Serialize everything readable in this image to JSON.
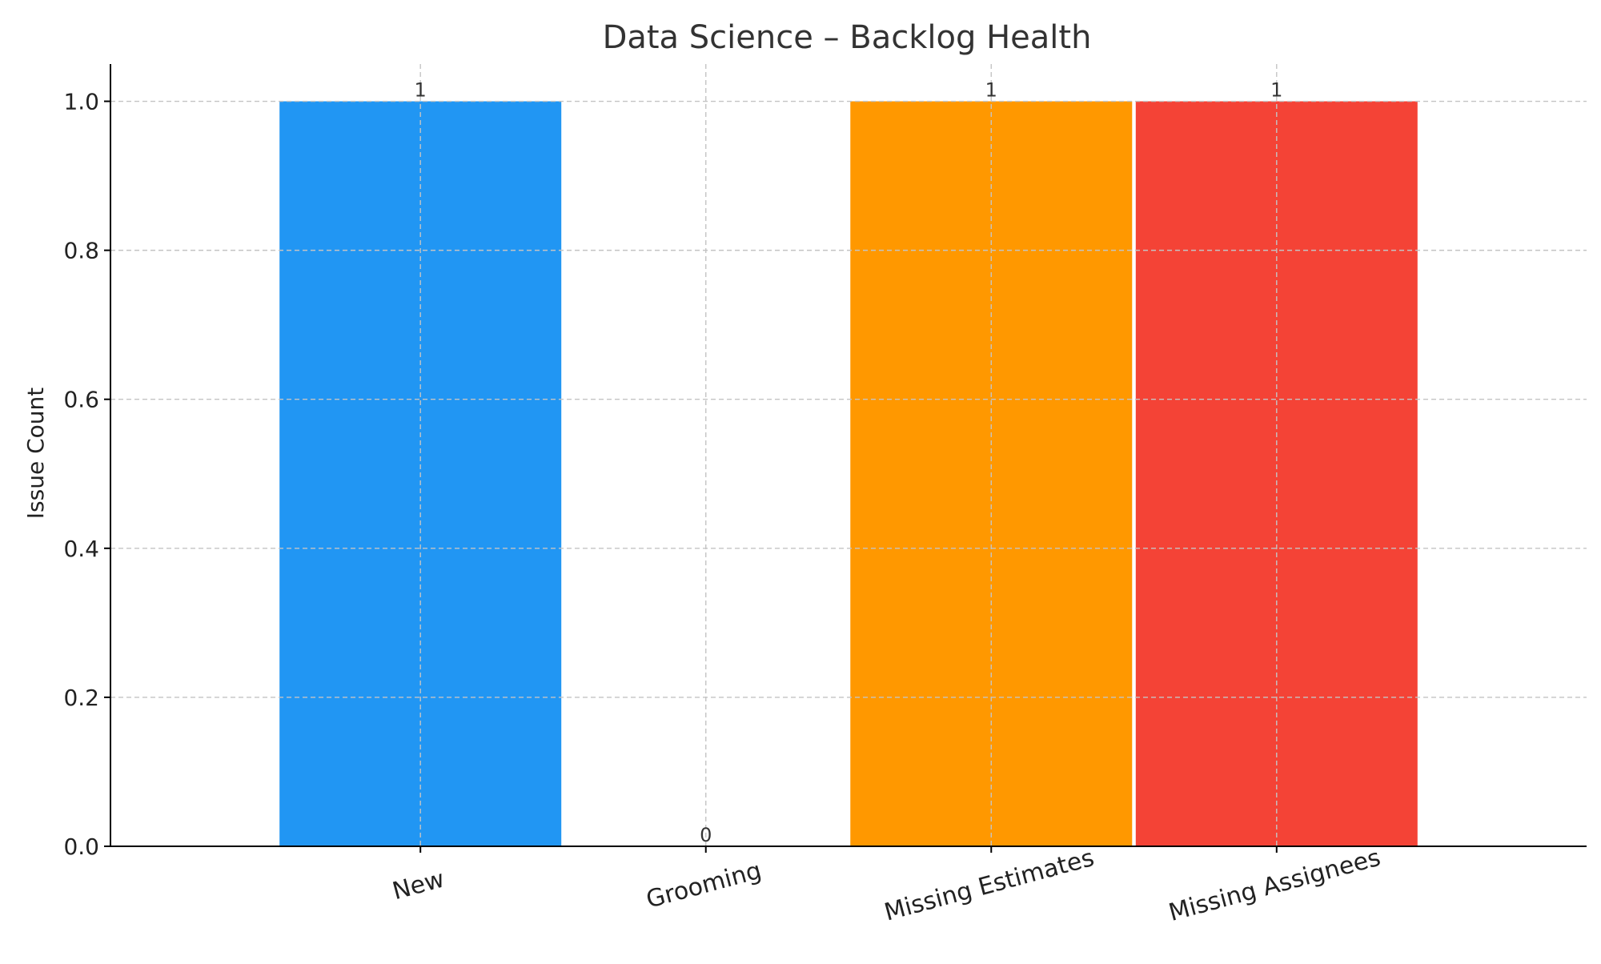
{
  "chart_data": {
    "type": "bar",
    "title": "Data Science – Backlog Health",
    "xlabel": "",
    "ylabel": "Issue Count",
    "categories": [
      "New",
      "Grooming",
      "Missing Estimates",
      "Missing Assignees"
    ],
    "values": [
      1,
      0,
      1,
      1
    ],
    "value_labels": [
      "1",
      "0",
      "1",
      "1"
    ],
    "colors": [
      "#2196F3",
      "#4CAF50",
      "#FF9800",
      "#F44336"
    ],
    "ylim": [
      0,
      1.05
    ],
    "yticks": [
      0.0,
      0.2,
      0.4,
      0.6,
      0.8,
      1.0
    ],
    "ytick_labels": [
      "0.0",
      "0.2",
      "0.4",
      "0.6",
      "0.8",
      "1.0"
    ],
    "grid": true,
    "legend": "none"
  }
}
